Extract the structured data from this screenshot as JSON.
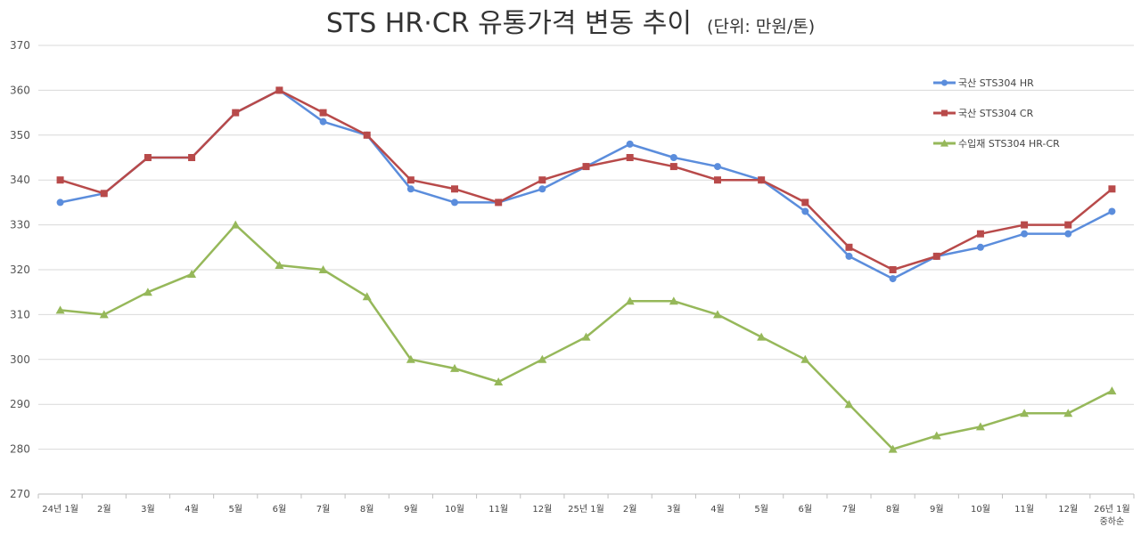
{
  "chart_data": {
    "type": "line",
    "title": "STS HR·CR 유통가격 변동 추이",
    "subtitle": "(단위: 만원/톤)",
    "categories": [
      "24년 1월",
      "2월",
      "3월",
      "4월",
      "5월",
      "6월",
      "7월",
      "8월",
      "9월",
      "10월",
      "11월",
      "12월",
      "25년 1월",
      "2월",
      "3월",
      "4월",
      "5월",
      "6월",
      "7월",
      "8월",
      "9월",
      "10월",
      "11월",
      "12월",
      "26년 1월"
    ],
    "category_sublabels": {
      "24": "중하순"
    },
    "ylim": [
      270,
      370
    ],
    "yticks": [
      "270",
      "280",
      "290",
      "300",
      "310",
      "320",
      "330",
      "340",
      "350",
      "360",
      "370"
    ],
    "grid": true,
    "legend_position": "top-right",
    "series": [
      {
        "name": "국산 STS304 HR",
        "color": "#5b8ddc",
        "marker": "circle",
        "values": [
          335,
          337,
          345,
          345,
          355,
          360,
          353,
          350,
          338,
          335,
          335,
          338,
          343,
          348,
          345,
          343,
          340,
          333,
          323,
          318,
          323,
          325,
          328,
          328,
          333
        ]
      },
      {
        "name": "국산 STS304 CR",
        "color": "#b84a4a",
        "marker": "square",
        "values": [
          340,
          337,
          345,
          345,
          355,
          360,
          355,
          350,
          340,
          338,
          335,
          340,
          343,
          345,
          343,
          340,
          340,
          335,
          325,
          320,
          323,
          328,
          330,
          330,
          338
        ]
      },
      {
        "name": "수입재 STS304 HR-CR",
        "color": "#96b85a",
        "marker": "triangle",
        "values": [
          311,
          310,
          315,
          319,
          330,
          321,
          320,
          314,
          300,
          298,
          295,
          300,
          305,
          313,
          313,
          310,
          305,
          300,
          290,
          280,
          283,
          285,
          288,
          288,
          293
        ]
      }
    ]
  }
}
